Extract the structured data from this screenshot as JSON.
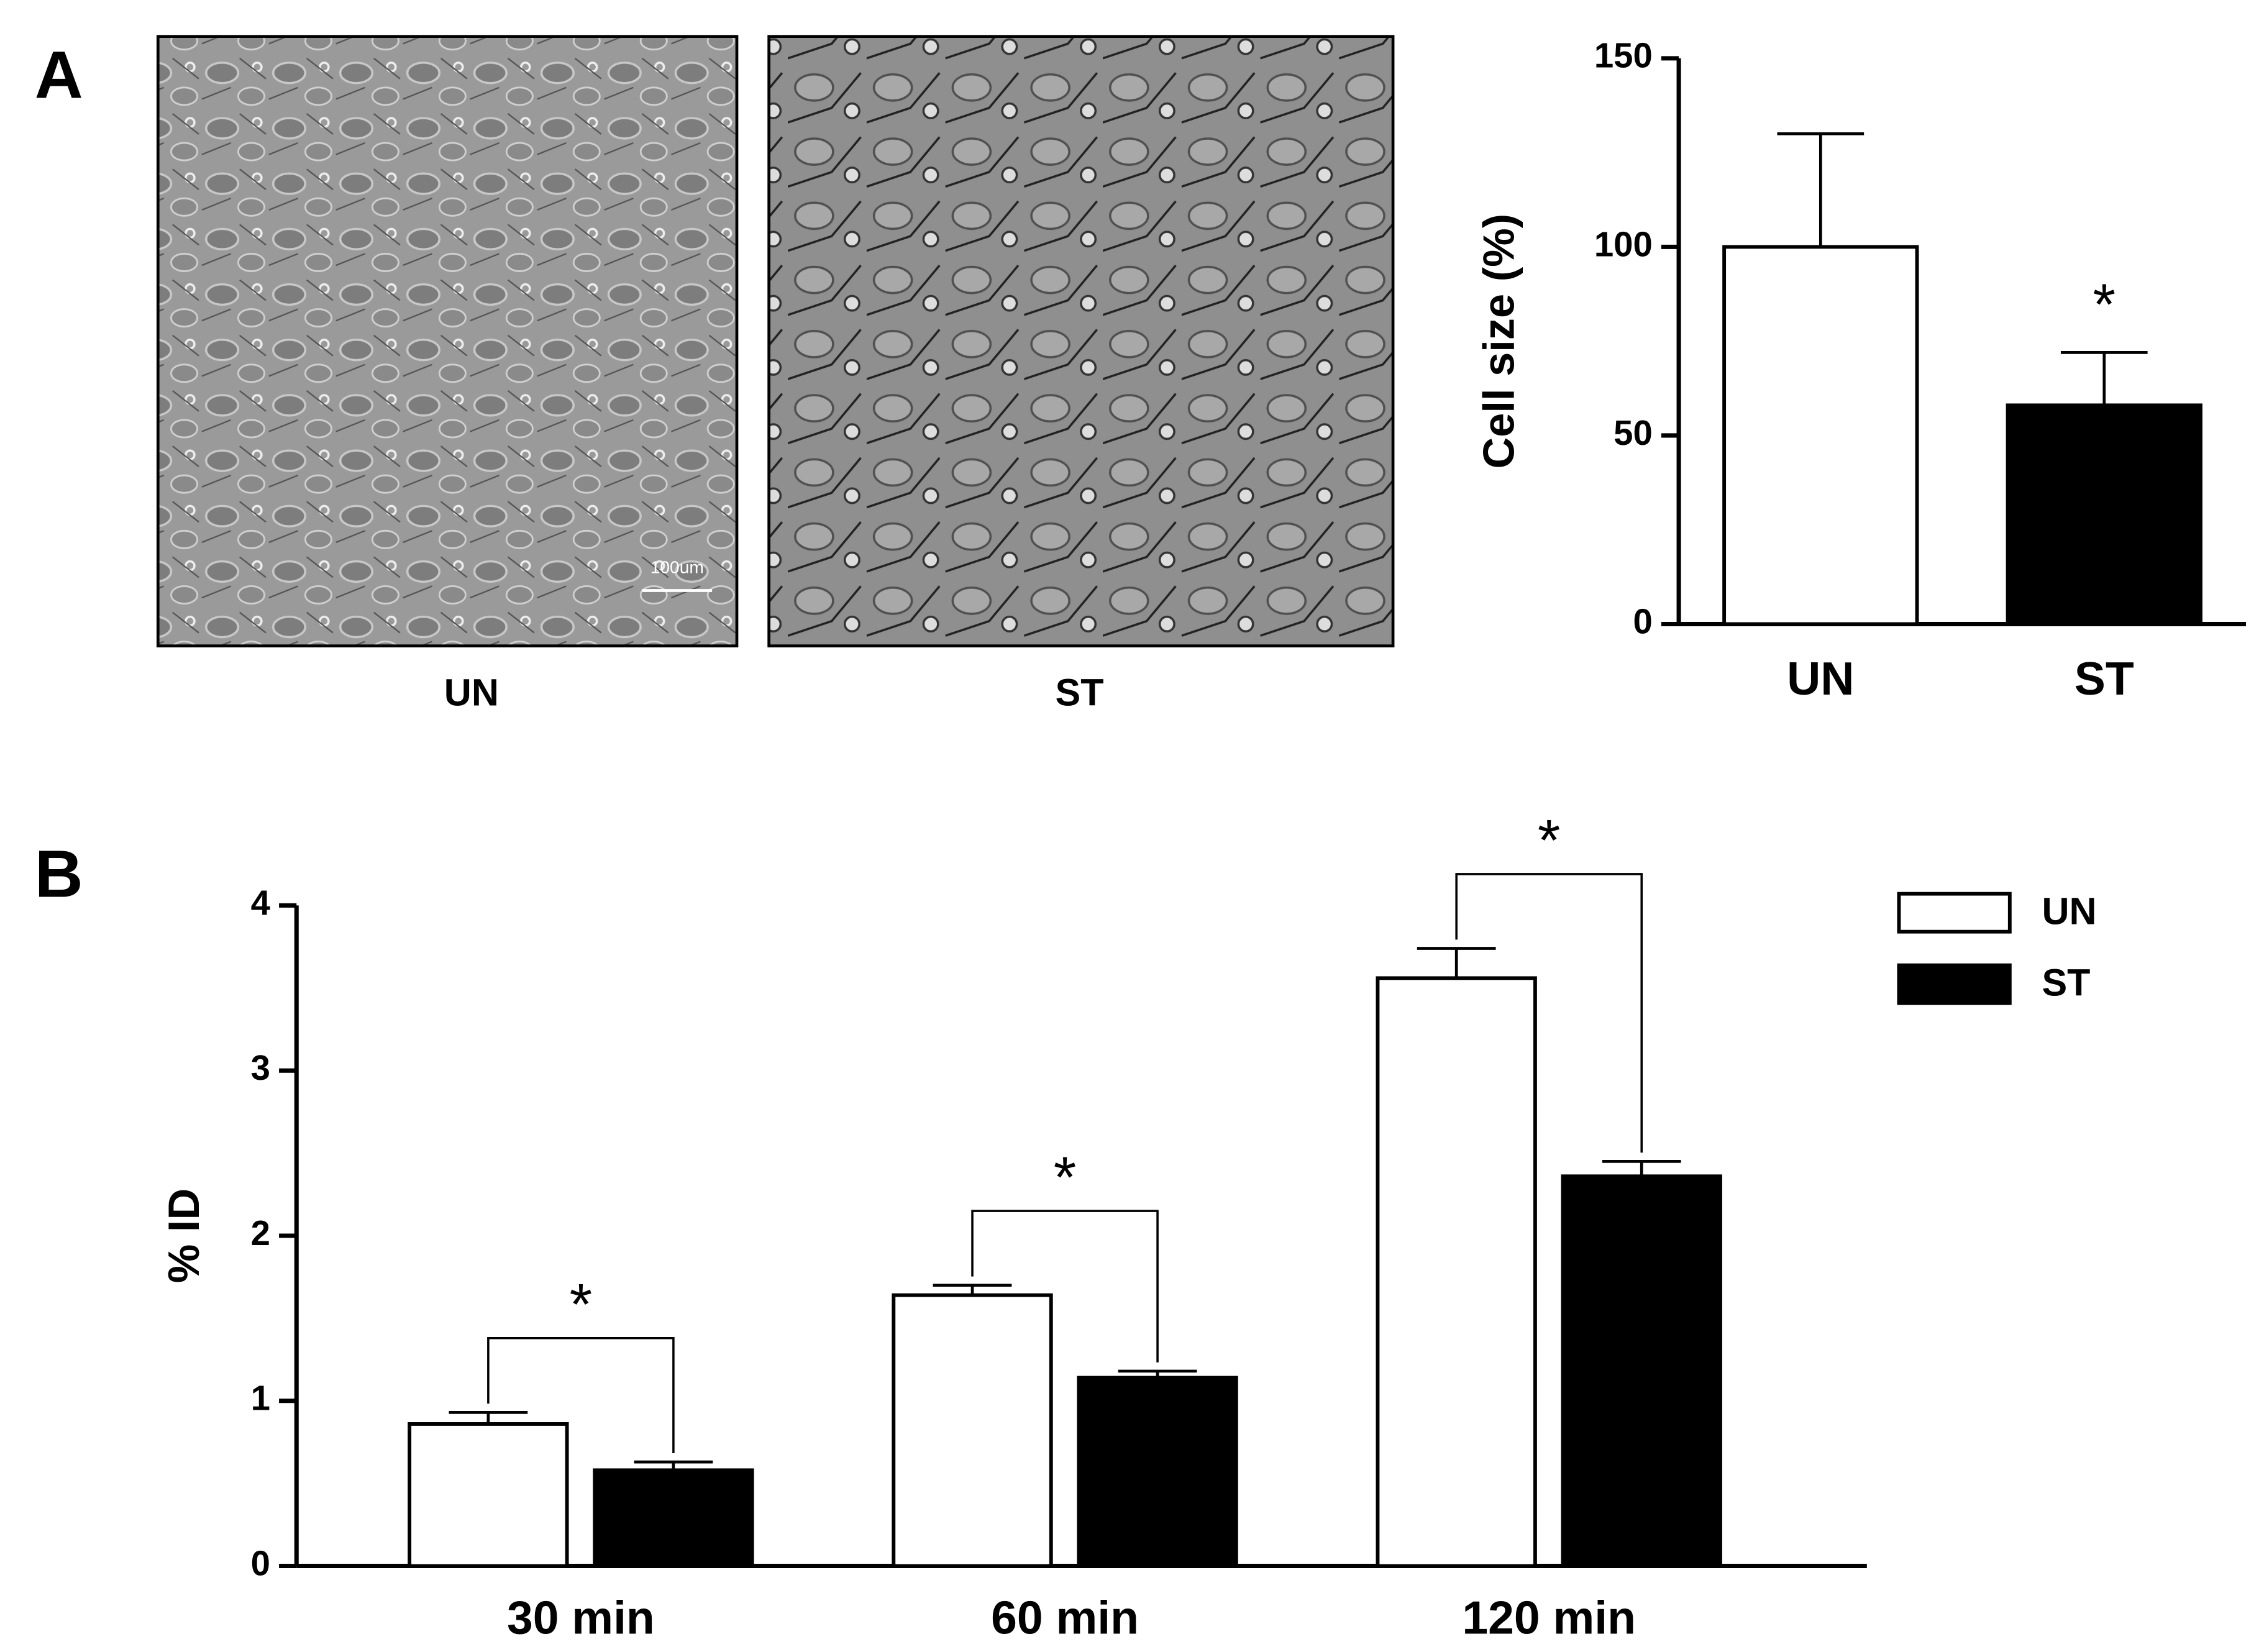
{
  "panel_labels": [
    "A",
    "B"
  ],
  "images": [
    {
      "label": "UN",
      "scale_bar": "100um"
    },
    {
      "label": "ST"
    }
  ],
  "chart_data": [
    {
      "type": "bar",
      "ylabel": "Cell size (%)",
      "categories": [
        "UN",
        "ST"
      ],
      "values": [
        100,
        58
      ],
      "errors": [
        30,
        14
      ],
      "colors": [
        "#ffffff",
        "#000000"
      ],
      "ylim": [
        0,
        150
      ],
      "yticks": [
        0,
        50,
        100,
        150
      ],
      "annotations": [
        {
          "text": "*",
          "category": "ST"
        }
      ]
    },
    {
      "type": "grouped_bar",
      "ylabel": "% ID",
      "categories": [
        "30 min",
        "60 min",
        "120 min"
      ],
      "series": [
        {
          "name": "UN",
          "color": "#ffffff",
          "values": [
            0.86,
            1.64,
            3.56
          ],
          "errors": [
            0.07,
            0.06,
            0.18
          ]
        },
        {
          "name": "ST",
          "color": "#000000",
          "values": [
            0.58,
            1.14,
            2.36
          ],
          "errors": [
            0.05,
            0.04,
            0.09
          ]
        }
      ],
      "ylim": [
        0,
        4
      ],
      "yticks": [
        0,
        1,
        2,
        3,
        4
      ],
      "legend": "upper right",
      "annotations": [
        {
          "text": "*",
          "category": "30 min"
        },
        {
          "text": "*",
          "category": "60 min"
        },
        {
          "text": "*",
          "category": "120 min"
        }
      ]
    }
  ]
}
